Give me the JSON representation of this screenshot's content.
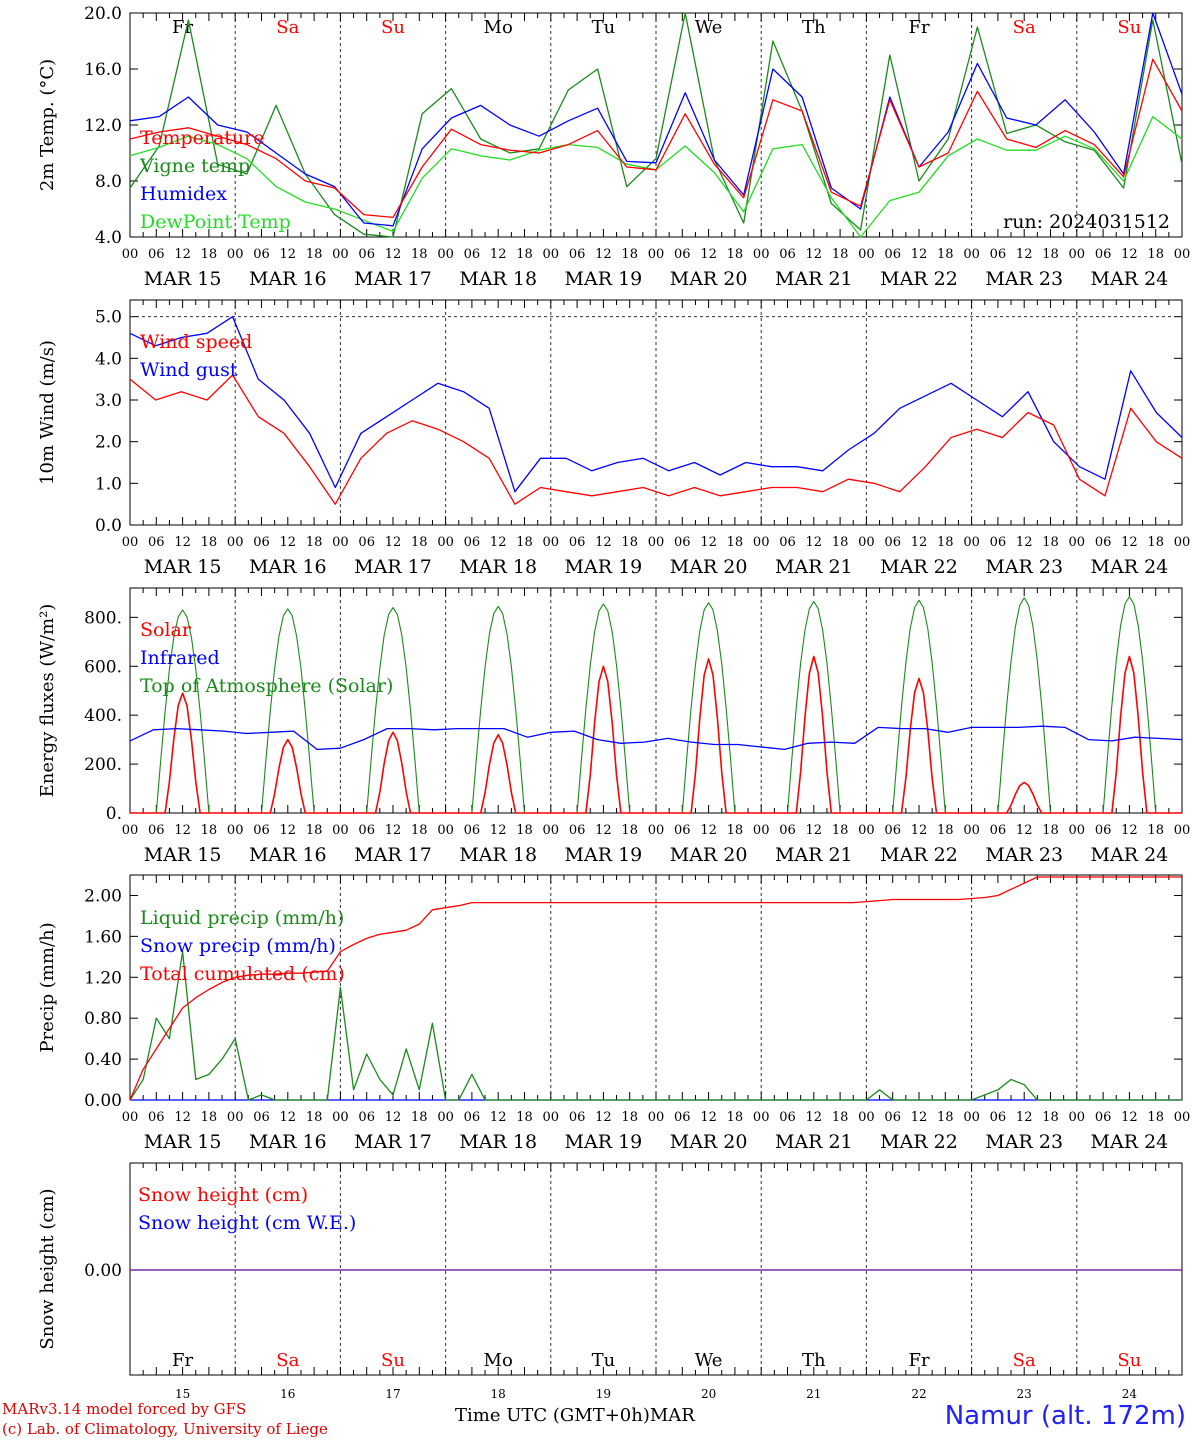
{
  "colors": {
    "red": "#ff0000",
    "green": "#1a8a1a",
    "blue": "#0000ff",
    "lightgreen": "#22dd22",
    "weekday_weekend": "#ff0000",
    "weekday_normal": "#000000",
    "station": "#2020ff",
    "credit": "#e00000",
    "snow_zero_line": "#7a2aa0"
  },
  "time": {
    "hours": [
      "00",
      "06",
      "12",
      "18"
    ],
    "end_tick_label": "00",
    "dates": [
      "MAR 15",
      "MAR 16",
      "MAR 17",
      "MAR 18",
      "MAR 19",
      "MAR 20",
      "MAR 21",
      "MAR 22",
      "MAR 23",
      "MAR 24"
    ],
    "weekdays": [
      "Fr",
      "Sa",
      "Su",
      "Mo",
      "Tu",
      "We",
      "Th",
      "Fr",
      "Sa",
      "Su"
    ],
    "weekend": [
      false,
      true,
      true,
      false,
      false,
      false,
      false,
      false,
      true,
      true
    ],
    "day_numbers": [
      "15",
      "16",
      "17",
      "18",
      "19",
      "20",
      "21",
      "22",
      "23",
      "24"
    ]
  },
  "footer": {
    "credit_line1": "MARv3.14 model forced by GFS",
    "credit_line2": "(c) Lab. of Climatology, University of Liege",
    "xlabel": "Time UTC (GMT+0h)",
    "month": "MAR",
    "station": "Namur (alt. 172m)"
  },
  "chart_data": [
    {
      "type": "line",
      "ylabel": "2m Temp. (°C)",
      "ylim": [
        4.0,
        20.0
      ],
      "yticks": [
        "4.0",
        "8.0",
        "12.0",
        "16.0",
        "20.0"
      ],
      "ytick_values": [
        4,
        8,
        12,
        16,
        20
      ],
      "annotation": "run: 2024031512",
      "legend_position": "left",
      "x_hours_per_point": 6,
      "series": [
        {
          "name": "Temperature",
          "color": "red",
          "values": [
            11.0,
            11.5,
            11.8,
            11.2,
            10.6,
            9.6,
            8.0,
            7.5,
            5.6,
            5.4,
            9.0,
            11.7,
            10.6,
            10.2,
            10.0,
            10.6,
            11.6,
            9.0,
            8.8,
            12.8,
            9.2,
            6.8,
            13.8,
            13.0,
            7.2,
            6.2,
            13.8,
            9.0,
            10.0,
            14.4,
            11.0,
            10.4,
            11.6,
            10.6,
            8.3,
            16.7,
            13.0
          ]
        },
        {
          "name": "Vigne temp",
          "color": "green",
          "values": [
            7.5,
            10.5,
            19.5,
            9.2,
            8.5,
            13.4,
            8.5,
            5.6,
            4.2,
            3.6,
            12.8,
            14.6,
            11.0,
            10.0,
            10.3,
            14.5,
            16.0,
            7.6,
            9.6,
            20.5,
            9.5,
            5.0,
            18.0,
            13.0,
            6.4,
            4.5,
            17.0,
            8.0,
            11.0,
            19.0,
            11.4,
            12.0,
            10.8,
            10.2,
            7.5,
            19.5,
            9.2
          ]
        },
        {
          "name": "Humidex",
          "color": "blue",
          "values": [
            12.3,
            12.6,
            14.0,
            12.0,
            11.5,
            10.0,
            8.5,
            7.6,
            5.0,
            4.8,
            10.3,
            12.5,
            13.4,
            12.0,
            11.2,
            12.3,
            13.2,
            9.4,
            9.3,
            14.3,
            9.5,
            7.0,
            16.0,
            14.0,
            7.5,
            6.0,
            14.0,
            9.0,
            11.5,
            16.4,
            12.5,
            12.0,
            13.8,
            11.5,
            8.5,
            20.2,
            14.2
          ]
        },
        {
          "name": "DewPoint Temp",
          "color": "lightgreen",
          "values": [
            9.8,
            10.4,
            11.2,
            10.6,
            9.6,
            7.6,
            6.5,
            6.0,
            5.2,
            4.4,
            8.2,
            10.3,
            9.8,
            9.5,
            10.2,
            10.6,
            10.4,
            9.2,
            8.8,
            10.5,
            8.6,
            5.8,
            10.3,
            10.6,
            6.8,
            4.0,
            6.6,
            7.2,
            9.8,
            11.0,
            10.2,
            10.2,
            11.2,
            10.3,
            8.0,
            12.6,
            11.0
          ]
        }
      ]
    },
    {
      "type": "line",
      "ylabel": "10m Wind (m/s)",
      "ylim": [
        0.0,
        5.4
      ],
      "yticks": [
        "0.0",
        "1.0",
        "2.0",
        "3.0",
        "4.0",
        "5.0"
      ],
      "ytick_values": [
        0,
        1,
        2,
        3,
        4,
        5
      ],
      "reference_line": 5.0,
      "legend_position": "left",
      "x_hours_per_point": 6,
      "series": [
        {
          "name": "Wind speed",
          "color": "red",
          "values": [
            3.5,
            3.0,
            3.2,
            3.0,
            3.6,
            2.6,
            2.2,
            1.4,
            0.5,
            1.6,
            2.2,
            2.5,
            2.3,
            2.0,
            1.6,
            0.5,
            0.9,
            0.8,
            0.7,
            0.8,
            0.9,
            0.7,
            0.9,
            0.7,
            0.8,
            0.9,
            0.9,
            0.8,
            1.1,
            1.0,
            0.8,
            1.4,
            2.1,
            2.3,
            2.1,
            2.7,
            2.4,
            1.1,
            0.7,
            2.8,
            2.0,
            1.6
          ]
        },
        {
          "name": "Wind gust",
          "color": "blue",
          "values": [
            4.6,
            4.3,
            4.5,
            4.6,
            5.0,
            3.5,
            3.0,
            2.2,
            0.9,
            2.2,
            2.6,
            3.0,
            3.4,
            3.2,
            2.8,
            0.8,
            1.6,
            1.6,
            1.3,
            1.5,
            1.6,
            1.3,
            1.5,
            1.2,
            1.5,
            1.4,
            1.4,
            1.3,
            1.8,
            2.2,
            2.8,
            3.1,
            3.4,
            3.0,
            2.6,
            3.2,
            2.0,
            1.4,
            1.1,
            3.7,
            2.7,
            2.1
          ]
        }
      ]
    },
    {
      "type": "line",
      "ylabel": "Energy fluxes (W/m²)",
      "ylim": [
        0,
        920
      ],
      "yticks": [
        "0.",
        "200.",
        "400.",
        "600.",
        "800."
      ],
      "ytick_values": [
        0,
        200,
        400,
        600,
        800
      ],
      "legend_position": "left",
      "daily_peaks": {
        "solar": [
          490,
          300,
          330,
          320,
          600,
          630,
          640,
          550,
          125,
          640
        ],
        "toa_solar": [
          830,
          835,
          840,
          845,
          855,
          860,
          865,
          870,
          880,
          885
        ]
      },
      "series": [
        {
          "name": "Solar",
          "color": "red"
        },
        {
          "name": "Infrared",
          "color": "blue",
          "values": [
            295,
            340,
            345,
            340,
            335,
            325,
            330,
            335,
            260,
            265,
            300,
            345,
            345,
            340,
            345,
            345,
            345,
            310,
            330,
            335,
            300,
            285,
            290,
            305,
            290,
            280,
            280,
            270,
            260,
            285,
            290,
            285,
            350,
            345,
            345,
            330,
            350,
            350,
            350,
            355,
            350,
            300,
            295,
            310,
            305,
            300
          ]
        },
        {
          "name": "Top of Atmosphere (Solar)",
          "color": "green"
        }
      ]
    },
    {
      "type": "line",
      "ylabel": "Precip (mm/h)",
      "ylim": [
        0.0,
        2.2
      ],
      "yticks": [
        "0.00",
        "0.40",
        "0.80",
        "1.20",
        "1.60",
        "2.00"
      ],
      "ytick_values": [
        0.0,
        0.4,
        0.8,
        1.2,
        1.6,
        2.0
      ],
      "legend_position": "left",
      "x_hours_per_point": 3,
      "series": [
        {
          "name": "Liquid precip (mm/h)",
          "color": "green",
          "values": [
            0.0,
            0.2,
            0.8,
            0.6,
            1.45,
            0.2,
            0.25,
            0.4,
            0.6,
            0.0,
            0.05,
            0.0,
            0.0,
            0.0,
            0.0,
            0.0,
            1.1,
            0.1,
            0.45,
            0.2,
            0.05,
            0.5,
            0.1,
            0.75,
            0.0,
            0.0,
            0.25,
            0.0,
            0.0,
            0.0,
            0.0,
            0.0,
            0.0,
            0.0,
            0.0,
            0.0,
            0.0,
            0.0,
            0.0,
            0.0,
            0.0,
            0.0,
            0.0,
            0.0,
            0.0,
            0.0,
            0.0,
            0.0,
            0.0,
            0.0,
            0.0,
            0.0,
            0.0,
            0.0,
            0.0,
            0.0,
            0.0,
            0.1,
            0.0,
            0.0,
            0.0,
            0.0,
            0.0,
            0.0,
            0.0,
            0.05,
            0.1,
            0.2,
            0.15,
            0.0,
            0.0,
            0.0,
            0.0,
            0.0,
            0.0,
            0.0,
            0.0,
            0.0,
            0.0,
            0.0,
            0.0
          ]
        },
        {
          "name": "Snow precip (mm/h)",
          "color": "blue",
          "values": [
            0,
            0,
            0,
            0,
            0,
            0,
            0,
            0,
            0,
            0,
            0,
            0,
            0,
            0,
            0,
            0,
            0,
            0,
            0,
            0,
            0,
            0,
            0,
            0,
            0,
            0,
            0,
            0,
            0,
            0,
            0,
            0,
            0,
            0,
            0,
            0,
            0,
            0,
            0,
            0,
            0,
            0,
            0,
            0,
            0,
            0,
            0,
            0,
            0,
            0,
            0,
            0,
            0,
            0,
            0,
            0,
            0,
            0,
            0,
            0,
            0,
            0,
            0,
            0,
            0,
            0,
            0,
            0,
            0,
            0,
            0,
            0,
            0,
            0,
            0,
            0,
            0,
            0,
            0,
            0,
            0
          ]
        },
        {
          "name": "Total cumulated (cm)",
          "color": "red",
          "values": [
            0.0,
            0.3,
            0.5,
            0.7,
            0.9,
            1.0,
            1.08,
            1.15,
            1.2,
            1.22,
            1.23,
            1.23,
            1.24,
            1.24,
            1.25,
            1.26,
            1.45,
            1.52,
            1.58,
            1.62,
            1.64,
            1.66,
            1.72,
            1.86,
            1.88,
            1.9,
            1.93,
            1.93,
            1.93,
            1.93,
            1.93,
            1.93,
            1.93,
            1.93,
            1.93,
            1.93,
            1.93,
            1.93,
            1.93,
            1.93,
            1.93,
            1.93,
            1.93,
            1.93,
            1.93,
            1.93,
            1.93,
            1.93,
            1.93,
            1.93,
            1.93,
            1.93,
            1.93,
            1.93,
            1.93,
            1.93,
            1.94,
            1.95,
            1.96,
            1.96,
            1.96,
            1.96,
            1.96,
            1.96,
            1.97,
            1.98,
            2.0,
            2.06,
            2.12,
            2.18,
            2.18,
            2.18,
            2.18,
            2.18,
            2.18,
            2.18,
            2.18,
            2.18,
            2.18,
            2.18,
            2.18
          ]
        }
      ]
    },
    {
      "type": "line",
      "ylabel": "Snow height (cm)",
      "yticks": [
        "0.00"
      ],
      "ytick_values": [
        0.0
      ],
      "legend_position": "left",
      "series": [
        {
          "name": "Snow height (cm)",
          "color": "red",
          "values": [
            0.0,
            0.0
          ]
        },
        {
          "name": "Snow height (cm W.E.)",
          "color": "blue",
          "values": [
            0.0,
            0.0
          ]
        }
      ]
    }
  ]
}
